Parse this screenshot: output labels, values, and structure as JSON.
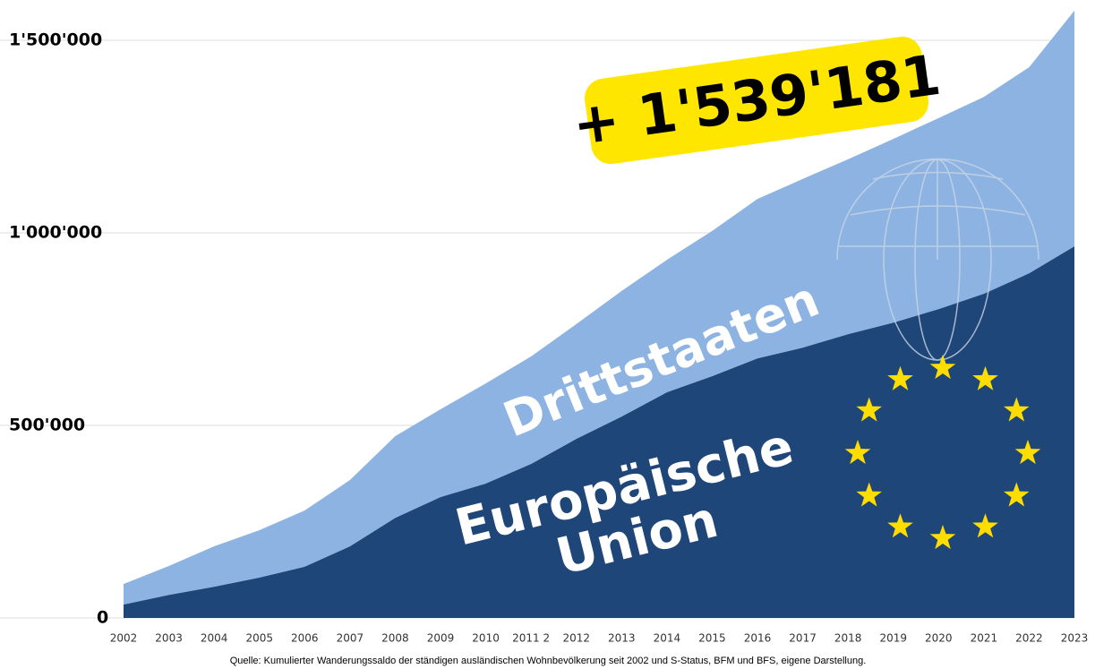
{
  "chart_data": {
    "type": "stacked_area",
    "annotation": "+ 1'539'181",
    "source": "Quelle: Kumulierter Wanderungssaldo der ständigen ausländischen Wohnbevölkerung seit 2002 und S-Status, BFM und BFS, eigene Darstellung.",
    "categories": [
      "2002",
      "2003",
      "2004",
      "2005",
      "2006",
      "2007",
      "2008",
      "2009",
      "2010",
      "2011 2",
      "2012",
      "2013",
      "2014",
      "2015",
      "2016",
      "2017",
      "2018",
      "2019",
      "2020",
      "2021",
      "2022",
      "2023"
    ],
    "series": [
      {
        "name": "Europäische Union",
        "color": "#1f4678",
        "values": [
          35000,
          60000,
          81000,
          105000,
          133000,
          186000,
          260000,
          314000,
          349000,
          400000,
          465000,
          523000,
          586000,
          628000,
          674000,
          702000,
          737000,
          767000,
          802000,
          842000,
          895000,
          965000
        ]
      },
      {
        "name": "Drittstaaten",
        "color": "#8db3e2",
        "values": [
          53000,
          75000,
          105000,
          123000,
          146000,
          172000,
          212000,
          228000,
          260000,
          279000,
          298000,
          326000,
          344000,
          377000,
          414000,
          438000,
          454000,
          477000,
          496000,
          511000,
          535000,
          612000
        ]
      }
    ],
    "ylim": [
      0,
      1600000
    ],
    "yticks": [
      0,
      {
        "value": 500000,
        "label": "500'000"
      },
      {
        "value": 1000000,
        "label": "1'000'000"
      },
      {
        "value": 1500000,
        "label": "1'500'000"
      }
    ],
    "grid": true
  }
}
